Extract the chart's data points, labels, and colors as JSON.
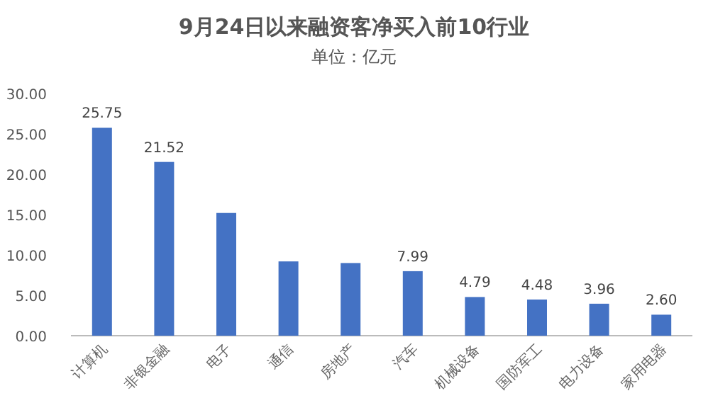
{
  "chart_data": {
    "type": "bar",
    "title": "9月24日以来融资客净买入前10行业",
    "subtitle": "单位：亿元",
    "categories": [
      "计算机",
      "非银金融",
      "电子",
      "通信",
      "房地产",
      "汽车",
      "机械设备",
      "国防军工",
      "电力设备",
      "家用电器"
    ],
    "values": [
      25.75,
      21.52,
      15.2,
      9.2,
      9.0,
      7.99,
      4.79,
      4.48,
      3.96,
      2.6
    ],
    "value_labels": [
      "25.75",
      "21.52",
      null,
      null,
      null,
      "7.99",
      "4.79",
      "4.48",
      "3.96",
      "2.60"
    ],
    "color": "#4472c4",
    "ylim": [
      0,
      30
    ],
    "yticks": [
      {
        "value": 0,
        "label": "0.00"
      },
      {
        "value": 5,
        "label": "5.00"
      },
      {
        "value": 10,
        "label": "10.00"
      },
      {
        "value": 15,
        "label": "15.00"
      },
      {
        "value": 20,
        "label": "20.00"
      },
      {
        "value": 25,
        "label": "25.00"
      },
      {
        "value": 30,
        "label": "30.00"
      }
    ],
    "grid": false
  }
}
